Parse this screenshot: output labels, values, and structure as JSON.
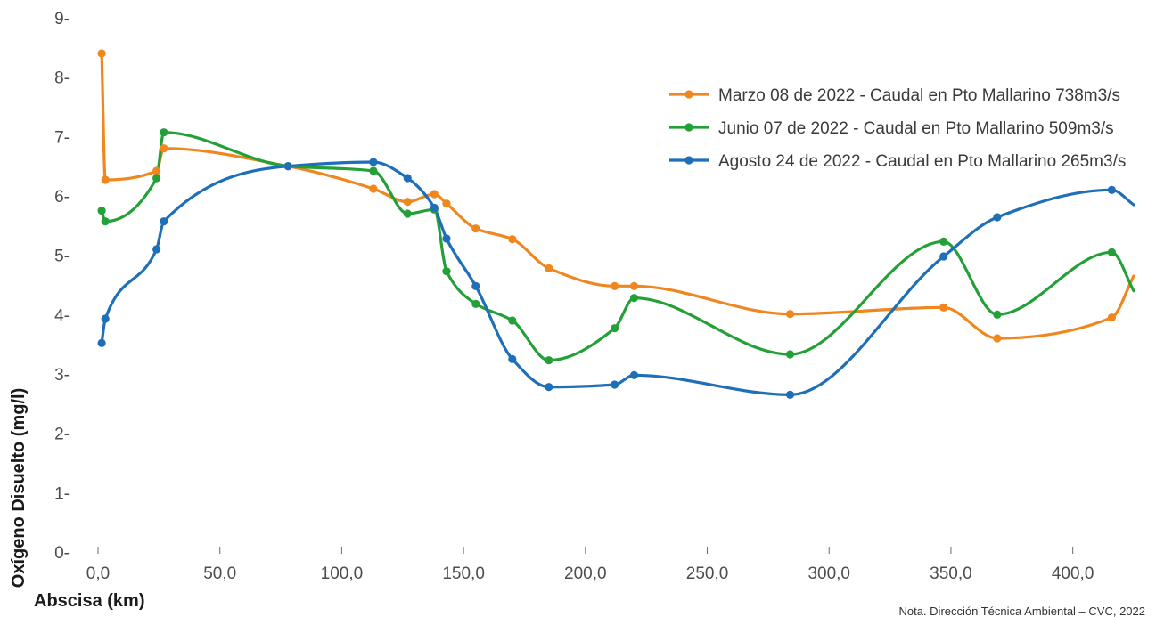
{
  "chart_data": {
    "type": "line",
    "ylabel": "Oxígeno Disuelto (mg/l)",
    "xlabel": "Abscisa (km)",
    "note": "Nota. Dirección Técnica Ambiental – CVC, 2022",
    "xlim": [
      0,
      425
    ],
    "ylim": [
      0,
      9
    ],
    "x_ticks": [
      0,
      50,
      100,
      150,
      200,
      250,
      300,
      350,
      400
    ],
    "x_tick_labels": [
      "0,0",
      "50,0",
      "100,0",
      "150,0",
      "200,0",
      "250,0",
      "300,0",
      "350,0",
      "400,0"
    ],
    "y_ticks": [
      0,
      1,
      2,
      3,
      4,
      5,
      6,
      7,
      8,
      9
    ],
    "y_tick_labels": [
      "0-",
      "1-",
      "2-",
      "3-",
      "4-",
      "5-",
      "6-",
      "7-",
      "8-",
      "9-"
    ],
    "grid": false,
    "legend_position": "top-right",
    "series": [
      {
        "name": "Marzo 08 de 2022 - Caudal en Pto Mallarino 738m3/s",
        "color": "#f0861e",
        "x": [
          1.5,
          3,
          24,
          27,
          78,
          113,
          127,
          138,
          143,
          155,
          170,
          185,
          212,
          220,
          284,
          347,
          369,
          416,
          425
        ],
        "y": [
          8.4,
          6.27,
          6.42,
          6.8,
          6.5,
          6.12,
          5.9,
          6.03,
          5.87,
          5.45,
          5.27,
          4.78,
          4.48,
          4.48,
          4.01,
          4.12,
          3.6,
          3.95,
          4.65
        ]
      },
      {
        "name": "Junio 07 de 2022 - Caudal en Pto Mallarino 509m3/s",
        "color": "#24a038",
        "x": [
          1.5,
          3,
          24,
          27,
          78,
          113,
          127,
          138,
          143,
          155,
          170,
          185,
          212,
          220,
          284,
          347,
          369,
          416,
          425
        ],
        "y": [
          5.75,
          5.57,
          6.3,
          7.07,
          6.5,
          6.42,
          5.7,
          5.77,
          4.73,
          4.18,
          3.9,
          3.23,
          3.77,
          4.28,
          3.33,
          5.23,
          4.0,
          5.05,
          4.4
        ]
      },
      {
        "name": "Agosto 24 de 2022 - Caudal en Pto Mallarino 265m3/s",
        "color": "#1f6fb8",
        "x": [
          1.5,
          3,
          24,
          27,
          78,
          113,
          127,
          138,
          143,
          155,
          170,
          185,
          212,
          220,
          284,
          347,
          369,
          416,
          425
        ],
        "y": [
          3.52,
          3.93,
          5.1,
          5.57,
          6.5,
          6.57,
          6.3,
          5.8,
          5.28,
          4.48,
          3.25,
          2.78,
          2.82,
          2.98,
          2.65,
          4.98,
          5.64,
          6.1,
          5.85
        ]
      }
    ]
  }
}
